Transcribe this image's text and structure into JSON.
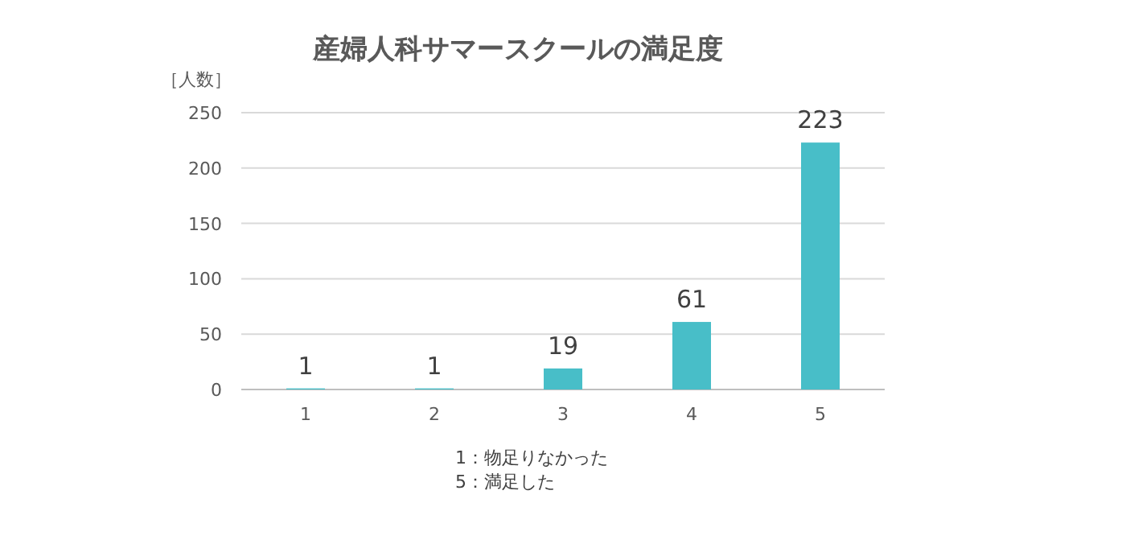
{
  "chart_data": {
    "type": "bar",
    "title": "産婦人科サマースクールの満足度",
    "ylabel": "［人数］",
    "categories": [
      "1",
      "2",
      "3",
      "4",
      "5"
    ],
    "values": [
      1,
      1,
      19,
      61,
      223
    ],
    "color": "#48bec8",
    "ylim": [
      0,
      250
    ],
    "yticks": [
      0,
      50,
      100,
      150,
      200,
      250
    ],
    "grid": "y",
    "data_labels": true,
    "annotations": [
      "1：物足りなかった",
      "5：満足した"
    ]
  }
}
